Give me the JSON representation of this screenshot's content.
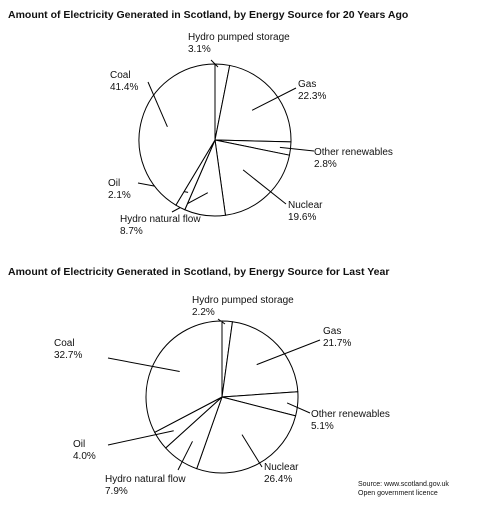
{
  "chart_data": [
    {
      "type": "pie",
      "title": "Amount of Electricity Generated in Scotland, by Energy Source for 20 Years Ago",
      "categories": [
        "Hydro pumped storage",
        "Gas",
        "Other renewables",
        "Nuclear",
        "Hydro natural flow",
        "Oil",
        "Coal"
      ],
      "values": [
        3.1,
        22.3,
        2.8,
        19.6,
        8.7,
        2.1,
        41.4
      ],
      "value_labels": [
        "3.1%",
        "22.3%",
        "2.8%",
        "19.6%",
        "8.7%",
        "2.1%",
        "41.4%"
      ],
      "colors": [
        "#ffffff"
      ],
      "legend": "none (direct labels with leader lines)"
    },
    {
      "type": "pie",
      "title": "Amount of Electricity Generated in Scotland, by Energy Source for Last Year",
      "categories": [
        "Hydro pumped storage",
        "Gas",
        "Other renewables",
        "Nuclear",
        "Hydro natural flow",
        "Oil",
        "Coal"
      ],
      "values": [
        2.2,
        21.7,
        5.1,
        26.4,
        7.9,
        4.0,
        32.7
      ],
      "value_labels": [
        "2.2%",
        "21.7%",
        "5.1%",
        "26.4%",
        "7.9%",
        "4.0%",
        "32.7%"
      ],
      "colors": [
        "#ffffff"
      ],
      "legend": "none (direct labels with leader lines)"
    }
  ],
  "source": {
    "line1": "Source: www.scotland.gov.uk",
    "line2": "Open government licence"
  }
}
